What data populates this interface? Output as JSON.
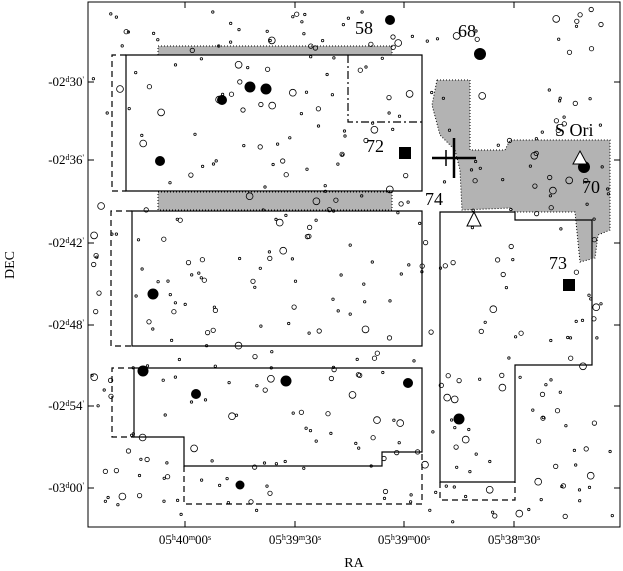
{
  "chart_data": {
    "type": "scatter",
    "title": "",
    "xlabel": "RA",
    "ylabel": "DEC",
    "x_ticks": [
      {
        "label_parts": [
          "05",
          "h",
          "40",
          "m",
          "00",
          "s"
        ]
      },
      {
        "label_parts": [
          "05",
          "h",
          "39",
          "m",
          "30",
          "s"
        ]
      },
      {
        "label_parts": [
          "05",
          "h",
          "39",
          "m",
          "00",
          "s"
        ]
      },
      {
        "label_parts": [
          "05",
          "h",
          "38",
          "m",
          "30",
          "s"
        ]
      }
    ],
    "y_ticks": [
      {
        "label_parts": [
          "-02",
          "d",
          "30",
          "'"
        ]
      },
      {
        "label_parts": [
          "-02",
          "d",
          "36",
          "'"
        ]
      },
      {
        "label_parts": [
          "-02",
          "d",
          "42",
          "'"
        ]
      },
      {
        "label_parts": [
          "-02",
          "d",
          "48",
          "'"
        ]
      },
      {
        "label_parts": [
          "-02",
          "d",
          "54",
          "'"
        ]
      },
      {
        "label_parts": [
          "-03",
          "d",
          "00",
          "'"
        ]
      }
    ],
    "annotations": [
      {
        "text": "58"
      },
      {
        "text": "68"
      },
      {
        "text": "72"
      },
      {
        "text": "S Ori"
      },
      {
        "text": "70"
      },
      {
        "text": "74"
      },
      {
        "text": "73"
      }
    ],
    "colors": {
      "shaded": "#b3b3b3",
      "ink": "#000000"
    }
  }
}
